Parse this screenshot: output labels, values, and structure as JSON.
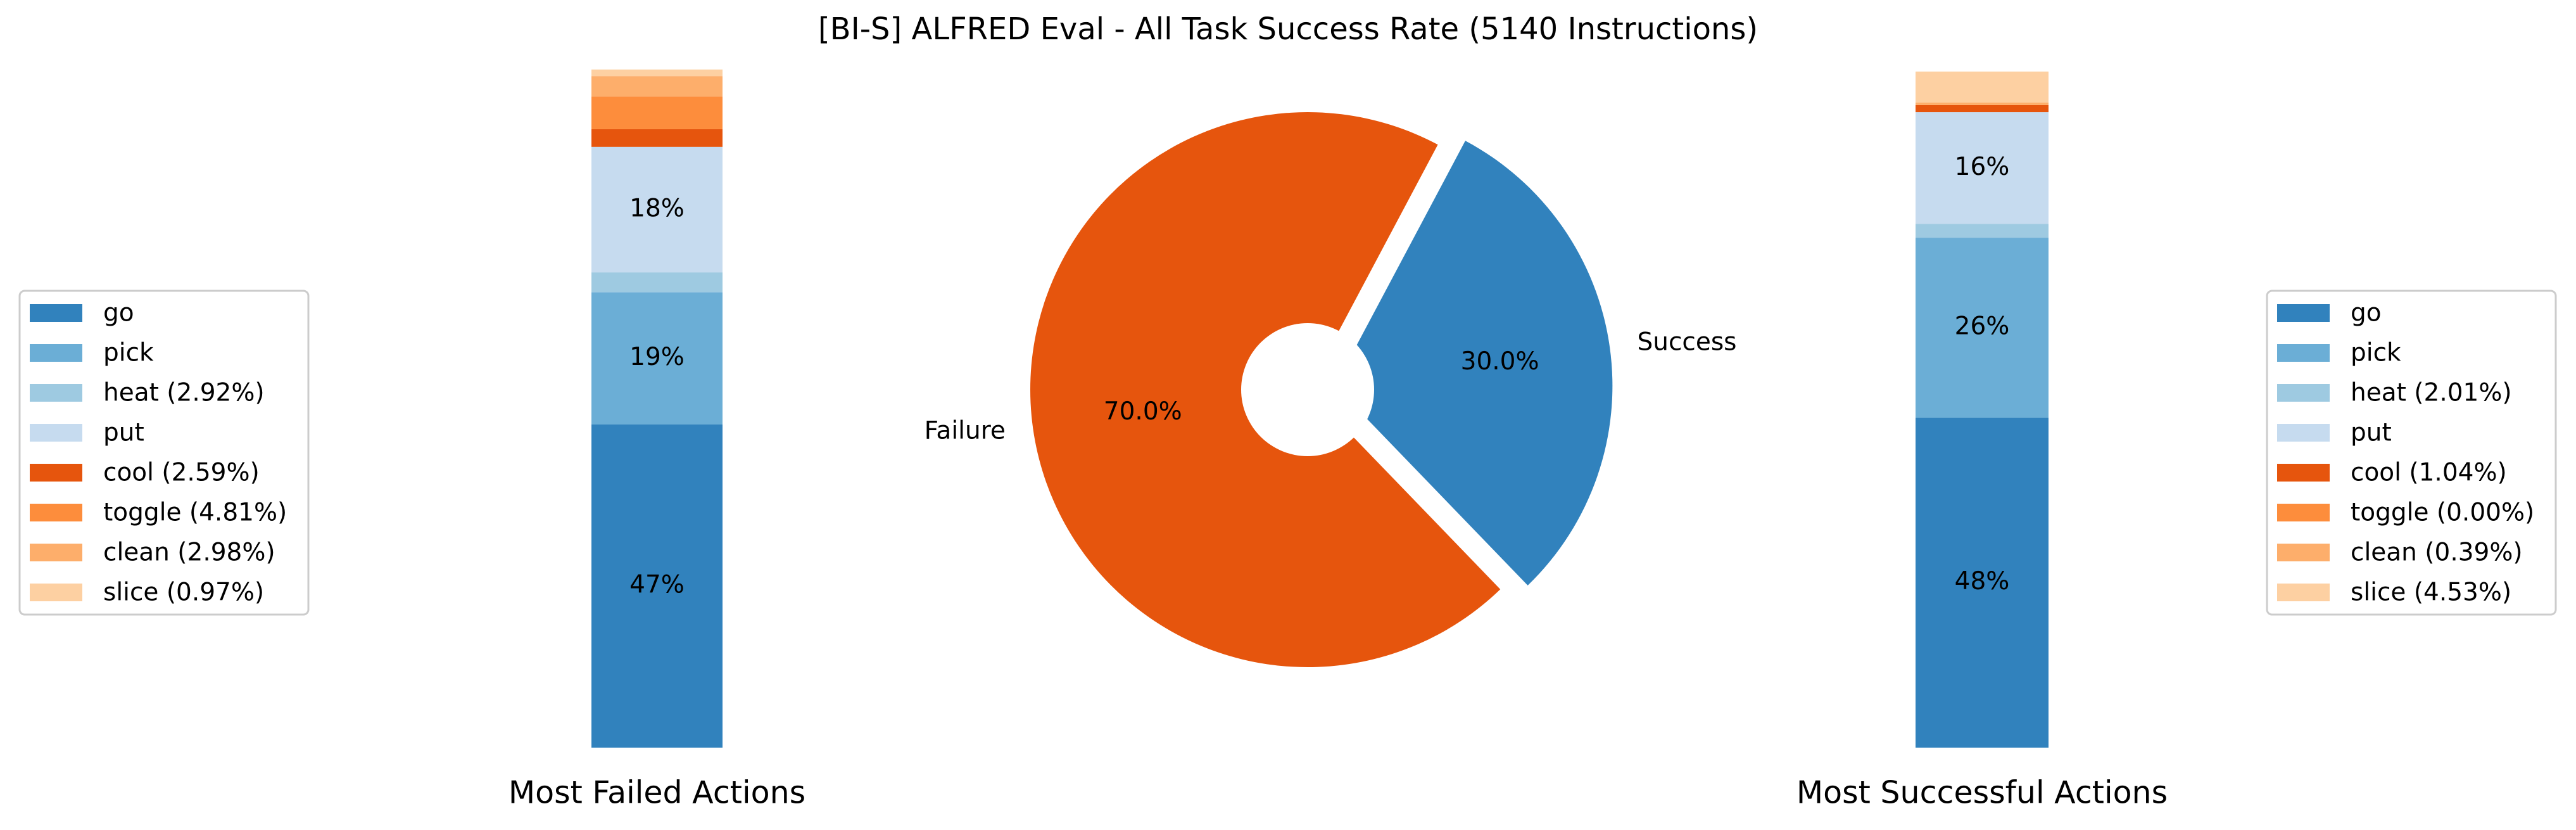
{
  "chart_data": [
    {
      "type": "bar",
      "stacked": true,
      "xlabel": "Most Failed Actions",
      "ylim": [
        0,
        100
      ],
      "legend": "left",
      "series": [
        {
          "name": "go",
          "color": "#3182bd",
          "values": [
            47.4
          ],
          "value_labels": [
            "47%"
          ]
        },
        {
          "name": "pick",
          "color": "#6baed6",
          "values": [
            19.4
          ],
          "value_labels": [
            "19%"
          ]
        },
        {
          "name": "heat (2.92%)",
          "color": "#9ecae1",
          "values": [
            2.92
          ]
        },
        {
          "name": "put",
          "color": "#c6dbef",
          "values": [
            18.4
          ],
          "value_labels": [
            "18%"
          ]
        },
        {
          "name": "cool (2.59%)",
          "color": "#e6550d",
          "values": [
            2.59
          ]
        },
        {
          "name": "toggle (4.81%)",
          "color": "#fd8d3c",
          "values": [
            4.81
          ]
        },
        {
          "name": "clean (2.98%)",
          "color": "#fdae6b",
          "values": [
            2.98
          ]
        },
        {
          "name": "slice (0.97%)",
          "color": "#fdd0a2",
          "values": [
            0.97
          ]
        }
      ]
    },
    {
      "type": "pie",
      "title": "[BI-S] ALFRED Eval - All Task Success Rate (5140 Instructions)",
      "categories": [
        "Failure",
        "Success"
      ],
      "values": [
        70.0,
        30.0
      ],
      "value_labels": [
        "70.0%",
        "30.0%"
      ],
      "colors": [
        "#e6550d",
        "#3182bd"
      ]
    },
    {
      "type": "bar",
      "stacked": true,
      "xlabel": "Most Successful Actions",
      "ylim": [
        0,
        100
      ],
      "legend": "right",
      "series": [
        {
          "name": "go",
          "color": "#3182bd",
          "values": [
            48.4
          ],
          "value_labels": [
            "48%"
          ]
        },
        {
          "name": "pick",
          "color": "#6baed6",
          "values": [
            26.4
          ],
          "value_labels": [
            "26%"
          ]
        },
        {
          "name": "heat (2.01%)",
          "color": "#9ecae1",
          "values": [
            2.01
          ]
        },
        {
          "name": "put",
          "color": "#c6dbef",
          "values": [
            16.4
          ],
          "value_labels": [
            "16%"
          ]
        },
        {
          "name": "cool (1.04%)",
          "color": "#e6550d",
          "values": [
            1.04
          ]
        },
        {
          "name": "toggle (0.00%)",
          "color": "#fd8d3c",
          "values": [
            0.0
          ]
        },
        {
          "name": "clean (0.39%)",
          "color": "#fdae6b",
          "values": [
            0.39
          ]
        },
        {
          "name": "slice (4.53%)",
          "color": "#fdd0a2",
          "values": [
            4.53
          ]
        }
      ]
    }
  ]
}
